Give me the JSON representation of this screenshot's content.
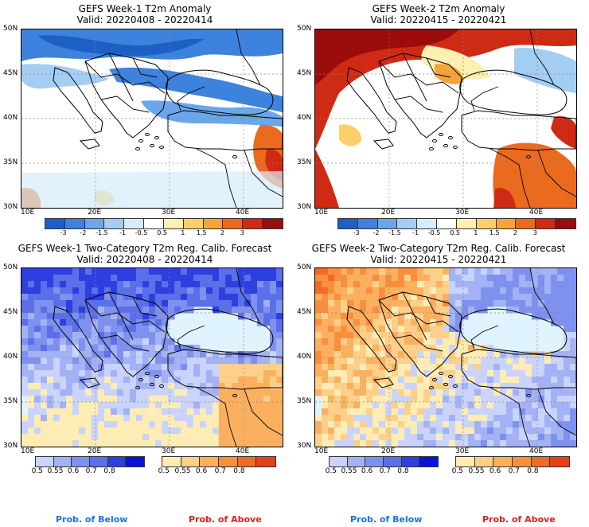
{
  "panels": [
    {
      "title": "GEFS Week-1 T2m Anomaly",
      "valid": "Valid: 20220408 - 20220414",
      "type": "anomaly",
      "theme": "cold"
    },
    {
      "title": "GEFS Week-2 T2m Anomaly",
      "valid": "Valid: 20220415 - 20220421",
      "type": "anomaly",
      "theme": "warm"
    },
    {
      "title": "GEFS Week-1 Two-Category T2m Reg. Calib. Forecast",
      "valid": "Valid: 20220408 - 20220414",
      "type": "probability",
      "theme": "cold"
    },
    {
      "title": "GEFS Week-2 Two-Category T2m Reg. Calib. Forecast",
      "valid": "Valid: 20220415 - 20220421",
      "type": "probability",
      "theme": "warm"
    }
  ],
  "axes": {
    "lat_labels": [
      "50N",
      "45N",
      "40N",
      "35N",
      "30N"
    ],
    "lon_labels": [
      "10E",
      "20E",
      "30E",
      "40E"
    ]
  },
  "anomaly_colorbar": {
    "labels": [
      "-3",
      "-2",
      "-1.5",
      "-1",
      "-0.5",
      "0.5",
      "1",
      "1.5",
      "2",
      "3"
    ],
    "colors": [
      "#1e5fc4",
      "#3d82dd",
      "#6aa7ea",
      "#a3cdf3",
      "#d6ecfb",
      "#ffffff",
      "#fdf0b0",
      "#fbcf6a",
      "#f7a33c",
      "#ea6a1f",
      "#cf2a13",
      "#9c0c0c"
    ]
  },
  "prob_below": {
    "labels": [
      "0.5",
      "0.55",
      "0.6",
      "0.7",
      "0.8"
    ],
    "colors": [
      "#c9d3fb",
      "#a3b2f4",
      "#7f91ee",
      "#5b6fe8",
      "#2e3fe0",
      "#0a14d8"
    ]
  },
  "prob_above": {
    "labels": [
      "0.5",
      "0.55",
      "0.6",
      "0.7",
      "0.8"
    ],
    "colors": [
      "#fdedb4",
      "#fdd08a",
      "#fbb060",
      "#f88f3f",
      "#f26a28",
      "#e8401a"
    ]
  },
  "legend": {
    "below_title": "Prob. of Below",
    "above_title": "Prob. of Above",
    "below_color": "#1a73e8",
    "above_color": "#e02020"
  }
}
